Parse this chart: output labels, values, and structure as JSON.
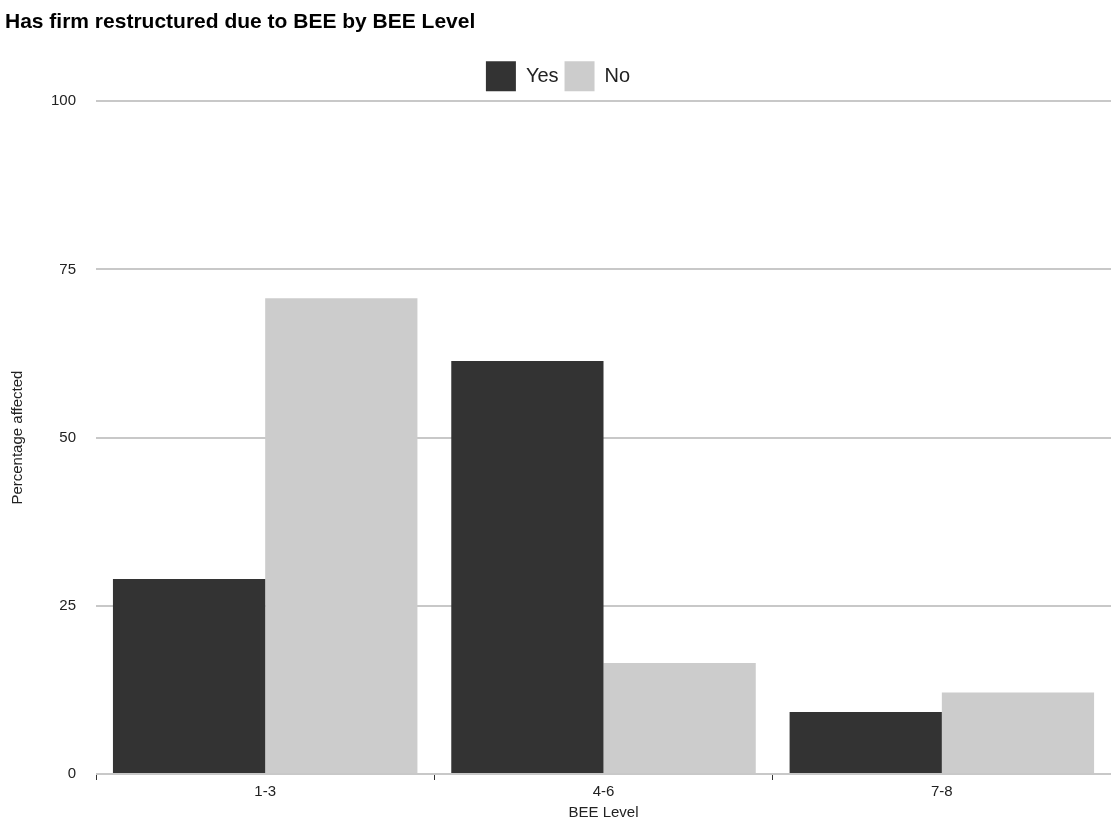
{
  "chart_data": {
    "type": "bar",
    "title": "Has firm restructured due to BEE by BEE Level",
    "xlabel": "BEE Level",
    "ylabel": "Percentage affected",
    "categories": [
      "1-3",
      "4-6",
      "7-8"
    ],
    "series": [
      {
        "name": "Yes",
        "color": "#333333",
        "values": [
          29,
          61.4,
          9.2
        ]
      },
      {
        "name": "No",
        "color": "#cccccc",
        "values": [
          70.7,
          16.5,
          12.1
        ]
      }
    ],
    "ylim": [
      0,
      100
    ],
    "yticks": [
      0,
      25,
      50,
      75,
      100
    ],
    "grid": "y",
    "legend": "top"
  }
}
